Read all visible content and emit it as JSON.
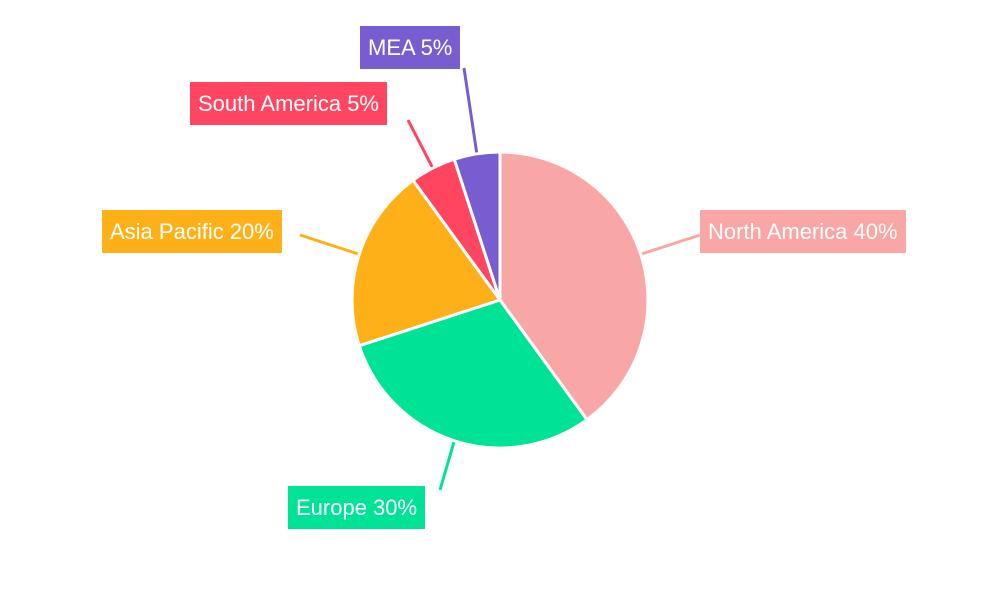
{
  "chart_data": {
    "type": "pie",
    "start_angle": "top, clockwise",
    "slices": [
      {
        "label": "North America",
        "value": 40,
        "text": "North America 40%",
        "color": "#F9A6A6"
      },
      {
        "label": "Europe",
        "value": 30,
        "text": "Europe 30%",
        "color": "#00E396"
      },
      {
        "label": "Asia Pacific",
        "value": 20,
        "text": "Asia Pacific 20%",
        "color": "#FEB019"
      },
      {
        "label": "South America",
        "value": 5,
        "text": "South America 5%",
        "color": "#FF4560"
      },
      {
        "label": "MEA",
        "value": 5,
        "text": "MEA 5%",
        "color": "#775DD0"
      }
    ],
    "legend": "none",
    "data_labels": "outside with leader lines"
  }
}
